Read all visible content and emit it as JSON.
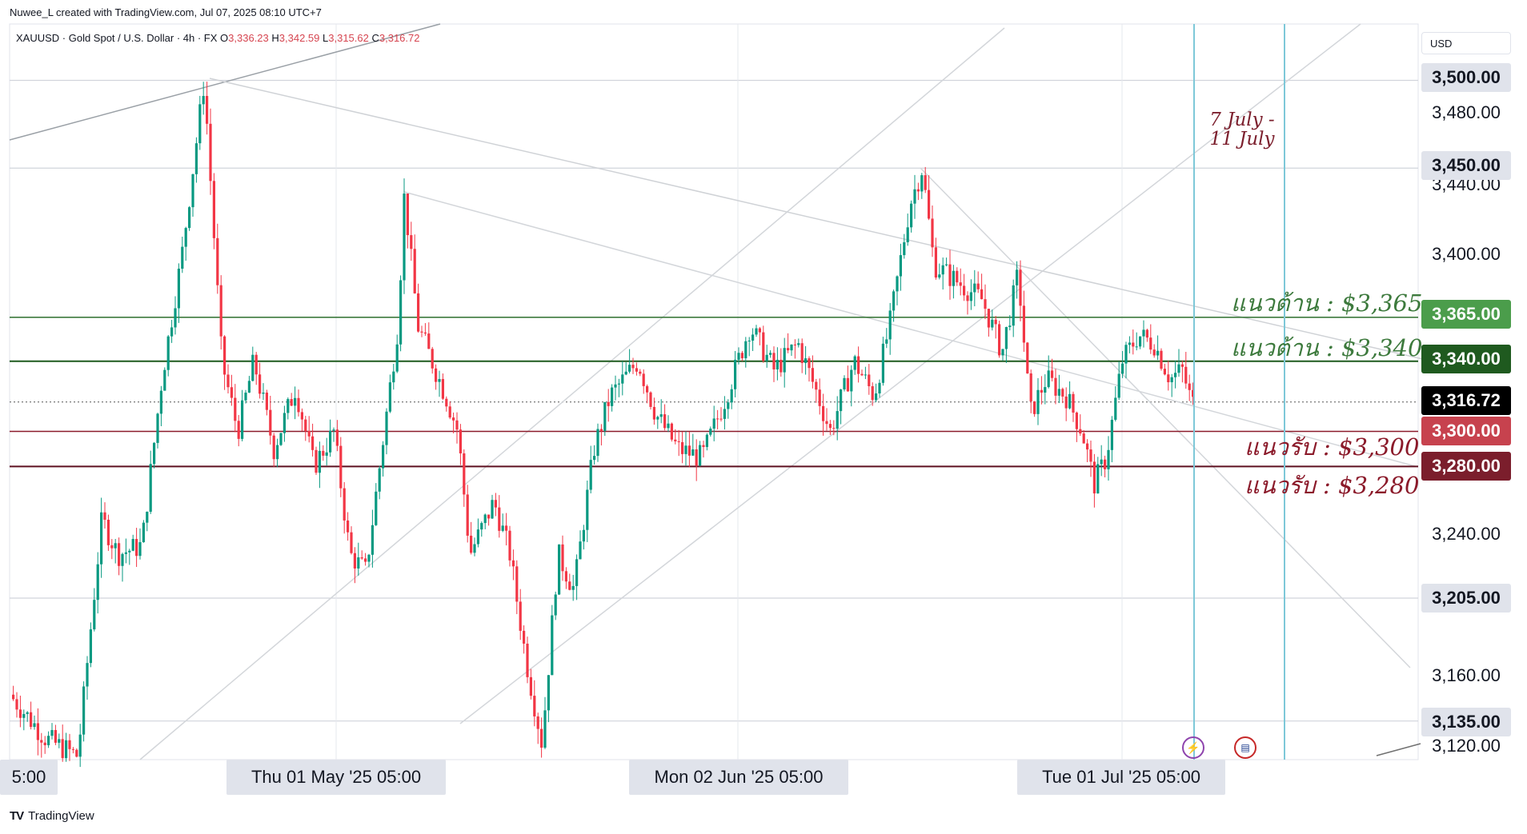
{
  "header": {
    "credit": "Nuwee_L created with TradingView.com, Jul 07, 2025 08:10 UTC+7",
    "symbol_desc": "XAUUSD · Gold Spot / U.S. Dollar · 4h · FX",
    "open_label": "O",
    "open": "3,336.23",
    "high_label": "H",
    "high": "3,342.59",
    "low_label": "L",
    "low": "3,315.62",
    "close_label": "C",
    "close": "3,316.72"
  },
  "price_axis": {
    "currency": "USD",
    "ticks": [
      "3,480.00",
      "3,440.00",
      "3,400.00",
      "3,240.00",
      "3,160.00",
      "3,120.00"
    ],
    "labels": [
      {
        "text": "3,500.00",
        "bg": "#e0e3eb",
        "fg": "#131722"
      },
      {
        "text": "3,450.00",
        "bg": "#e0e3eb",
        "fg": "#131722"
      },
      {
        "text": "3,365.00",
        "bg": "#4b9d4b",
        "fg": "#ffffff"
      },
      {
        "text": "3,340.00",
        "bg": "#1f5a1f",
        "fg": "#ffffff"
      },
      {
        "text": "3,316.72",
        "bg": "#000000",
        "fg": "#ffffff"
      },
      {
        "text": "3,300.00",
        "bg": "#c7424e",
        "fg": "#ffffff"
      },
      {
        "text": "3,280.00",
        "bg": "#7b1e2c",
        "fg": "#ffffff"
      },
      {
        "text": "3,205.00",
        "bg": "#e0e3eb",
        "fg": "#131722"
      },
      {
        "text": "3,135.00",
        "bg": "#e0e3eb",
        "fg": "#131722"
      }
    ]
  },
  "time_axis": {
    "labels": [
      "5:00",
      "Thu 01 May '25   05:00",
      "Mon 02 Jun '25   05:00",
      "Tue 01 Jul '25   05:00"
    ]
  },
  "levels": {
    "resistance_1": "แนวต้าน : $3,365",
    "resistance_2": "แนวต้าน : $3,340",
    "support_1": "แนวรับ : $3,300",
    "support_2": "แนวรับ : $3,280",
    "resistance_color": "#3d7a3d",
    "support_color": "#8b1a2a"
  },
  "annotation": {
    "line1": "7 July -",
    "line2": "11 July"
  },
  "icons": {
    "lightning": "lightning-event-icon",
    "flag": "us-flag-event-icon"
  },
  "footer": {
    "brand": "TradingView",
    "logo": "TV"
  },
  "chart_data": {
    "type": "candlestick",
    "title": "XAUUSD · Gold Spot / U.S. Dollar · 4h · FX",
    "xlabel": "",
    "ylabel": "",
    "ylim": [
      3110,
      3520
    ],
    "x_range": [
      "Apr 2025",
      "Jul 07 2025"
    ],
    "last_price": 3316.72,
    "horizontal_levels": [
      3365,
      3340,
      3300,
      3280
    ],
    "swing_points": [
      {
        "label": "late Apr high",
        "price": 3500
      },
      {
        "label": "mid May low",
        "price": 3120
      },
      {
        "label": "mid Jun high",
        "price": 3452
      },
      {
        "label": "late Jun low",
        "price": 3247
      },
      {
        "label": "Jul 07 close",
        "price": 3316.72
      }
    ]
  }
}
